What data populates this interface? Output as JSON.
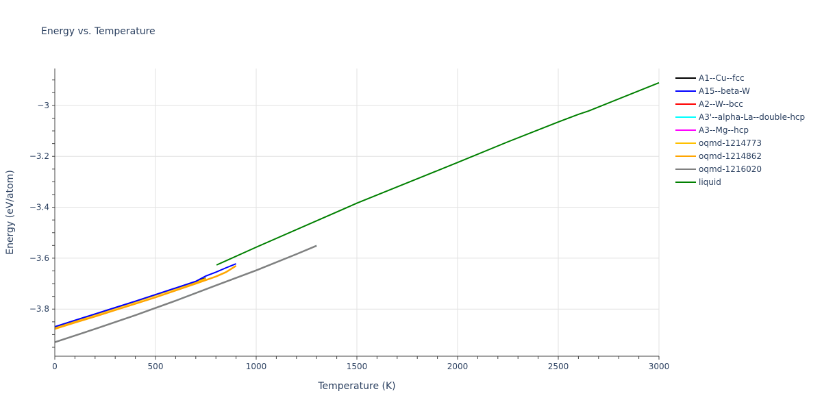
{
  "chart_data": {
    "type": "line",
    "title": "Energy vs. Temperature",
    "xlabel": "Temperature (K)",
    "ylabel": "Energy (eV/atom)",
    "xlim": [
      0,
      3000
    ],
    "ylim": [
      -3.985,
      -2.855
    ],
    "xticks": [
      0,
      500,
      1000,
      1500,
      2000,
      2500,
      3000
    ],
    "xtick_labels": [
      "0",
      "500",
      "1000",
      "1500",
      "2000",
      "2500",
      "3000"
    ],
    "yticks": [
      -3.8,
      -3.6,
      -3.4,
      -3.2,
      -3.0
    ],
    "ytick_labels": [
      "−3.8",
      "−3.6",
      "−3.4",
      "−3.2",
      "−3"
    ],
    "grid": true,
    "legend_position": "right",
    "series": [
      {
        "name": "A1--Cu--fcc",
        "color": "#000000",
        "x": [
          0,
          100,
          200,
          300,
          400,
          500,
          600,
          700,
          750
        ],
        "y": [
          -3.87,
          -3.845,
          -3.82,
          -3.795,
          -3.77,
          -3.744,
          -3.718,
          -3.692,
          -3.678
        ]
      },
      {
        "name": "A15--beta-W",
        "color": "#0000ff",
        "x": [
          0,
          100,
          200,
          300,
          400,
          500,
          600,
          700,
          750,
          800,
          850,
          900
        ],
        "y": [
          -3.869,
          -3.844,
          -3.819,
          -3.794,
          -3.769,
          -3.743,
          -3.717,
          -3.691,
          -3.67,
          -3.655,
          -3.638,
          -3.622
        ]
      },
      {
        "name": "A2--W--bcc",
        "color": "#ff0000",
        "x": [],
        "y": []
      },
      {
        "name": "A3'--alpha-La--double-hcp",
        "color": "#00ffff",
        "x": [
          0,
          200,
          400,
          600,
          800,
          1000,
          1200,
          1300
        ],
        "y": [
          -3.93,
          -3.878,
          -3.824,
          -3.767,
          -3.707,
          -3.648,
          -3.584,
          -3.551
        ]
      },
      {
        "name": "A3--Mg--hcp",
        "color": "#ff00ff",
        "x": [],
        "y": []
      },
      {
        "name": "oqmd-1214773",
        "color": "#ffc000",
        "x": [
          0,
          100,
          200,
          300,
          400,
          500,
          600,
          700,
          750
        ],
        "y": [
          -3.872,
          -3.847,
          -3.822,
          -3.797,
          -3.772,
          -3.746,
          -3.72,
          -3.694,
          -3.68
        ]
      },
      {
        "name": "oqmd-1214862",
        "color": "#ffa500",
        "x": [
          0,
          100,
          200,
          300,
          400,
          500,
          600,
          700,
          800,
          850,
          900
        ],
        "y": [
          -3.878,
          -3.853,
          -3.829,
          -3.804,
          -3.779,
          -3.754,
          -3.727,
          -3.7,
          -3.672,
          -3.655,
          -3.63
        ]
      },
      {
        "name": "oqmd-1216020",
        "color": "#808080",
        "x": [
          0,
          200,
          400,
          600,
          800,
          1000,
          1200,
          1300
        ],
        "y": [
          -3.93,
          -3.878,
          -3.824,
          -3.767,
          -3.707,
          -3.648,
          -3.584,
          -3.551
        ]
      },
      {
        "name": "liquid",
        "color": "#008000",
        "x": [
          803,
          1000,
          1500,
          2000,
          2250,
          2500,
          2600,
          2650,
          3000
        ],
        "y": [
          -3.627,
          -3.557,
          -3.384,
          -3.224,
          -3.143,
          -3.065,
          -3.035,
          -3.022,
          -2.911
        ]
      }
    ]
  }
}
